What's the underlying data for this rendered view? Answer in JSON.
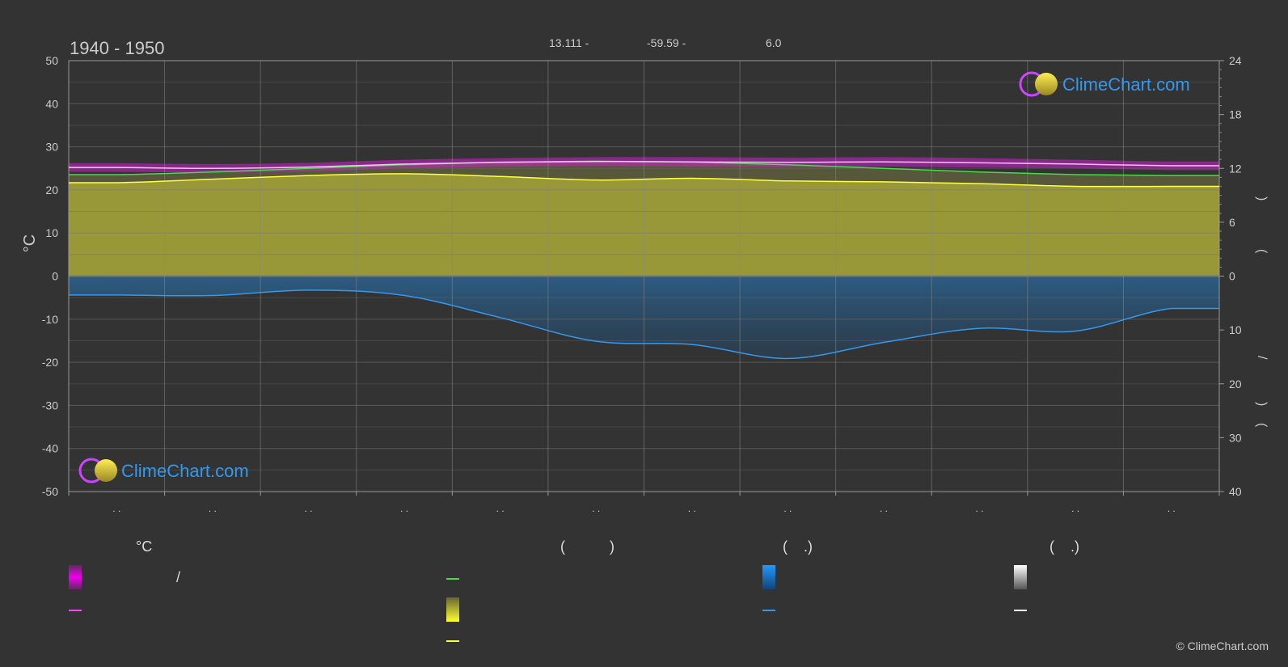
{
  "chart_data": {
    "type": "area",
    "title": "1940 - 1950",
    "header_values": [
      "13.111 -",
      "-59.59 -",
      "6.0"
    ],
    "xlabel": "",
    "ylabel_left": "°C",
    "ylim_left": [
      -50,
      50
    ],
    "yticks_left": [
      50,
      40,
      30,
      20,
      10,
      0,
      -10,
      -20,
      -30,
      -40,
      -50
    ],
    "yticks_right_top": [
      24,
      18,
      12,
      6,
      0
    ],
    "ylim_right_top": [
      0,
      24
    ],
    "yticks_right_bottom": [
      0,
      10,
      20,
      30,
      40
    ],
    "ylim_right_bottom": [
      0,
      40
    ],
    "right_axis_label_fragments": [
      ")",
      "(",
      "/",
      ")",
      "("
    ],
    "month_tick_labels": [
      ". .",
      ". .",
      ". .",
      ". .",
      ". .",
      ". .",
      ". .",
      ". .",
      ". .",
      ". .",
      ". .",
      ". ."
    ],
    "x_months": [
      0.5,
      1.5,
      2.5,
      3.5,
      4.5,
      5.5,
      6.5,
      7.5,
      8.5,
      9.5,
      10.5,
      11.5
    ],
    "series": [
      {
        "name": "",
        "color": "#ff44ff",
        "axis": "temperature",
        "values": [
          25.2,
          25.0,
          25.3,
          26.0,
          26.4,
          26.6,
          26.5,
          26.4,
          26.5,
          26.3,
          26.0,
          25.6
        ]
      },
      {
        "name": "",
        "color": "#ffff44",
        "axis": "sunshine",
        "values": [
          10.4,
          10.8,
          11.2,
          11.4,
          11.1,
          10.7,
          10.9,
          10.6,
          10.5,
          10.3,
          10.0,
          10.0
        ]
      },
      {
        "name": "",
        "color": "#44dd44",
        "axis": "daylight",
        "values": [
          11.3,
          11.6,
          12.0,
          12.4,
          12.7,
          12.8,
          12.7,
          12.4,
          12.0,
          11.6,
          11.3,
          11.2
        ]
      },
      {
        "name": "",
        "color": "#3399ee",
        "axis": "precipitation",
        "values": [
          3.5,
          3.6,
          2.6,
          3.6,
          7.7,
          12.1,
          12.7,
          15.3,
          12.3,
          9.7,
          10.2,
          6.0
        ]
      }
    ],
    "temp_band": {
      "upper": [
        26.2,
        26.0,
        26.3,
        27.0,
        27.4,
        27.6,
        27.6,
        27.5,
        27.6,
        27.4,
        27.0,
        26.6
      ],
      "lower": [
        24.2,
        24.0,
        24.3,
        25.0,
        25.4,
        25.6,
        25.4,
        25.3,
        25.4,
        25.2,
        25.0,
        24.6
      ]
    },
    "grid": true,
    "legend_position": "bottom"
  },
  "legend": {
    "col1_header": "°C",
    "col2_header": "(           )",
    "col3_header": "(    .)",
    "col4_header": "(    .)",
    "col1_row1_text": "/"
  },
  "watermark": {
    "text": "ClimeChart.com"
  },
  "copyright": "© ClimeChart.com"
}
